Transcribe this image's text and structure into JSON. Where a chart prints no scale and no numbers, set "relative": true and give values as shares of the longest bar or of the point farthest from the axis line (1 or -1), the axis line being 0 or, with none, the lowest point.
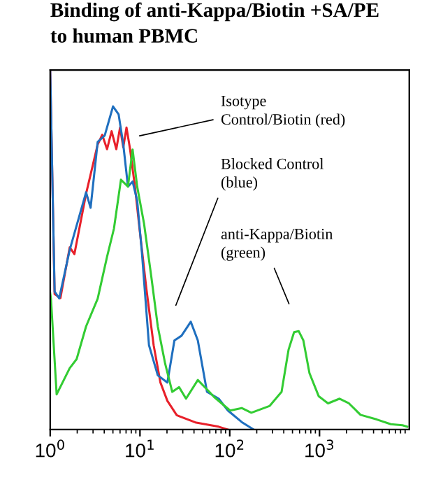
{
  "chart_data": {
    "type": "line",
    "title": "Binding of anti-Kappa/Biotin +SA/PE\nto human PBMC",
    "relative": true,
    "log": "x",
    "grid": false,
    "legend": false,
    "marker": "none",
    "line_style": "solid",
    "xlim": [
      1,
      10000
    ],
    "xticks": [
      {
        "value": 1,
        "label": "10$^{0}$"
      },
      {
        "value": 10,
        "label": "10$^{1}$"
      },
      {
        "value": 100,
        "label": "10$^{2}$"
      },
      {
        "value": 1000,
        "label": "10$^{3}$"
      }
    ],
    "series": [
      {
        "color": "#e8202a",
        "x": [
          1,
          1.12,
          1.3,
          1.65,
          1.86,
          2.51,
          3.38,
          3.8,
          4.3,
          4.83,
          5.45,
          6.0,
          6.52,
          7.08,
          7.76,
          8.79,
          9.89,
          11.8,
          14.2,
          16.9,
          20.2,
          25.7,
          41.4,
          75.3,
          95.5
        ],
        "values": [
          1,
          0.377,
          0.366,
          0.507,
          0.488,
          0.656,
          0.793,
          0.82,
          0.78,
          0.83,
          0.78,
          0.84,
          0.785,
          0.84,
          0.78,
          0.676,
          0.559,
          0.391,
          0.235,
          0.131,
          0.08,
          0.04,
          0.02,
          0.008,
          0
        ]
      },
      {
        "color": "#1f6fbf",
        "x": [
          1,
          1.12,
          1.26,
          1.65,
          2.51,
          2.82,
          3.38,
          4.05,
          5.01,
          5.78,
          6.52,
          7.35,
          8.28,
          9.31,
          10.5,
          12.6,
          15.8,
          20.2,
          24.2,
          29.0,
          36.8,
          44.1,
          55.8,
          75.3,
          95.5,
          136,
          185
        ],
        "values": [
          1,
          0.384,
          0.365,
          0.5,
          0.66,
          0.617,
          0.8,
          0.818,
          0.899,
          0.877,
          0.793,
          0.676,
          0.69,
          0.637,
          0.494,
          0.235,
          0.151,
          0.131,
          0.248,
          0.261,
          0.3,
          0.248,
          0.105,
          0.086,
          0.053,
          0.021,
          0
        ]
      },
      {
        "color": "#33cc33",
        "x": [
          1,
          1.02,
          1.18,
          1.65,
          1.97,
          2.51,
          3.38,
          4.3,
          5.13,
          6.14,
          7.35,
          8.28,
          9.31,
          11.1,
          13.3,
          15.8,
          19.1,
          22.9,
          27.3,
          32.6,
          44.1,
          59.3,
          66.8,
          101,
          136,
          174,
          279,
          378,
          452,
          521,
          586,
          661,
          773,
          979,
          1245,
          1675,
          2128,
          2864,
          4365,
          6237,
          8395,
          9484
        ],
        "values": [
          0.38,
          0.364,
          0.098,
          0.171,
          0.196,
          0.287,
          0.364,
          0.481,
          0.559,
          0.695,
          0.676,
          0.779,
          0.676,
          0.573,
          0.43,
          0.287,
          0.183,
          0.105,
          0.118,
          0.086,
          0.138,
          0.105,
          0.091,
          0.053,
          0.06,
          0.047,
          0.066,
          0.105,
          0.222,
          0.271,
          0.274,
          0.248,
          0.157,
          0.093,
          0.073,
          0.086,
          0.073,
          0.041,
          0.028,
          0.015,
          0.012,
          0.008
        ]
      }
    ],
    "annotations": [
      "Isotype\nControl/Biotin (red)",
      "Blocked Control\n(blue)",
      "anti-Kappa/Biotin\n(green)"
    ]
  }
}
